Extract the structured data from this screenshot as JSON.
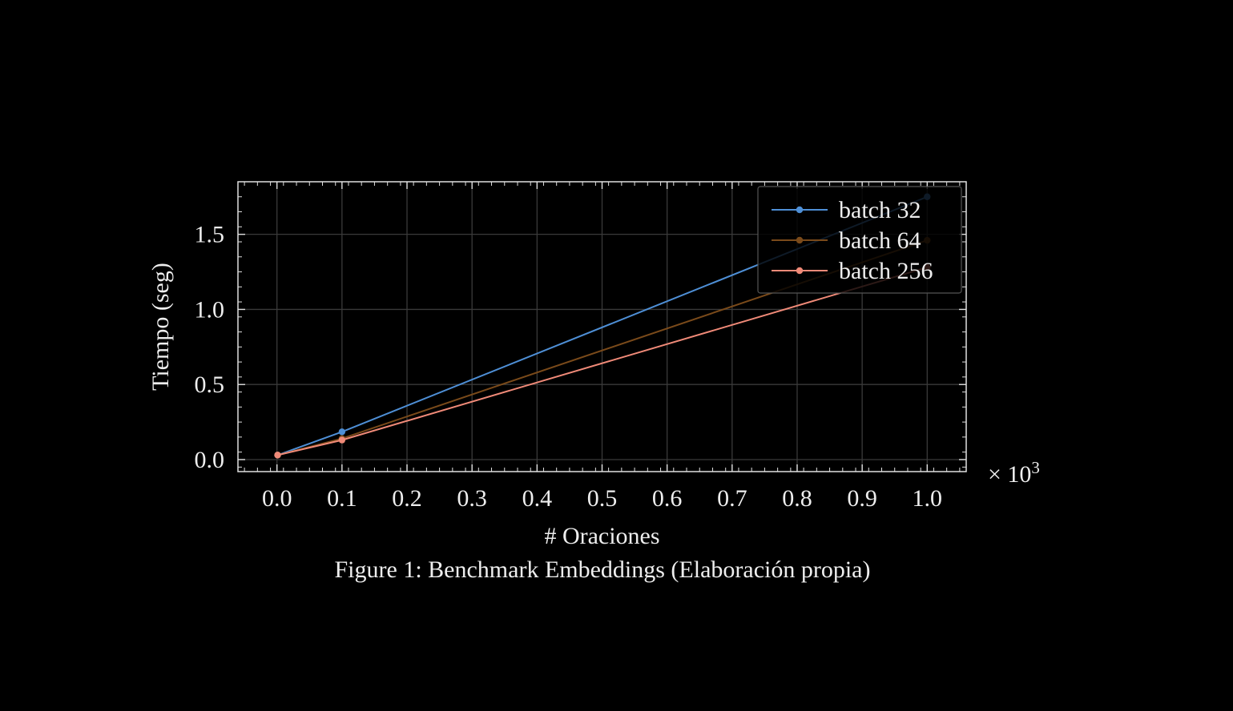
{
  "caption": "Figure 1: Benchmark Embeddings (Elaboración propia)",
  "chart_data": {
    "type": "line",
    "title": "",
    "xlabel": "# Oraciones",
    "ylabel": "Tiempo (seg)",
    "x_scale_label": "× 10",
    "x_scale_exponent": "3",
    "x_scale_factor": 1000,
    "xlim": [
      -60,
      1060
    ],
    "ylim": [
      -0.08,
      1.85
    ],
    "xticks": [
      0,
      100,
      200,
      300,
      400,
      500,
      600,
      700,
      800,
      900,
      1000
    ],
    "xtick_labels": [
      "0.0",
      "0.1",
      "0.2",
      "0.3",
      "0.4",
      "0.5",
      "0.6",
      "0.7",
      "0.8",
      "0.9",
      "1.0"
    ],
    "yticks": [
      0,
      0.5,
      1.0,
      1.5
    ],
    "ytick_labels": [
      "0.0",
      "0.5",
      "1.0",
      "1.5"
    ],
    "grid": true,
    "legend_position": "top-right",
    "x": [
      1,
      100,
      1000
    ],
    "series": [
      {
        "name": "batch 32",
        "color": "#4e8fd6",
        "values": [
          0.03,
          0.185,
          1.75
        ]
      },
      {
        "name": "batch 64",
        "color": "#7a4a1a",
        "values": [
          0.03,
          0.14,
          1.46
        ]
      },
      {
        "name": "batch 256",
        "color": "#f08a78",
        "values": [
          0.03,
          0.13,
          1.28
        ]
      }
    ]
  }
}
